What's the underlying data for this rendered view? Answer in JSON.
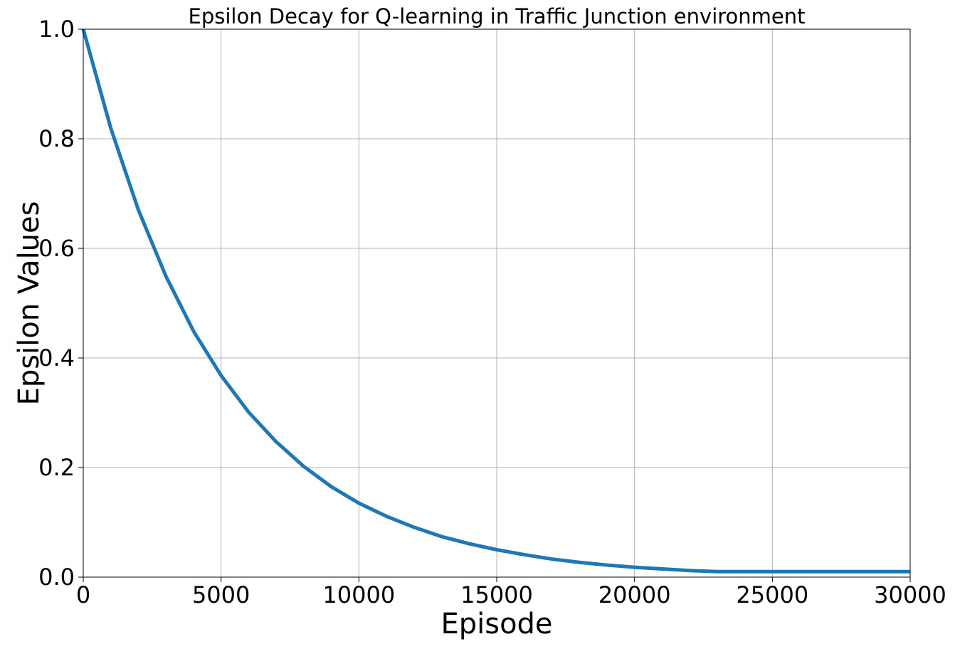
{
  "chart_data": {
    "type": "line",
    "title": "Epsilon Decay for Q-learning in Traffic Junction environment",
    "xlabel": "Episode",
    "ylabel": "Epsilon Values",
    "xlim": [
      0,
      30000
    ],
    "ylim": [
      0,
      1.0
    ],
    "xticks": [
      "0",
      "5000",
      "10000",
      "15000",
      "20000",
      "25000",
      "30000"
    ],
    "yticks": [
      "0.0",
      "0.2",
      "0.4",
      "0.6",
      "0.8",
      "1.0"
    ],
    "grid": true,
    "color": "#1f77b4",
    "series": [
      {
        "x": [
          0,
          1000,
          2000,
          3000,
          4000,
          5000,
          6000,
          7000,
          8000,
          9000,
          10000,
          11000,
          12000,
          13000,
          14000,
          15000,
          16000,
          17000,
          18000,
          19000,
          20000,
          21000,
          22000,
          23000,
          24000,
          25000,
          26000,
          27000,
          28000,
          29000,
          30000
        ],
        "y": [
          1.0,
          0.819,
          0.67,
          0.549,
          0.449,
          0.368,
          0.301,
          0.247,
          0.202,
          0.165,
          0.135,
          0.111,
          0.091,
          0.074,
          0.061,
          0.05,
          0.041,
          0.033,
          0.027,
          0.022,
          0.018,
          0.015,
          0.012,
          0.01,
          0.01,
          0.01,
          0.01,
          0.01,
          0.01,
          0.01,
          0.01
        ]
      }
    ]
  }
}
